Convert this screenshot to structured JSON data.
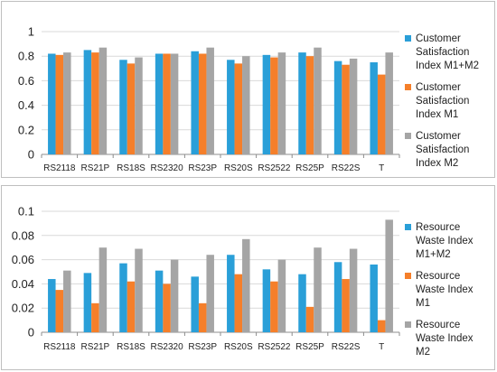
{
  "colors": {
    "series1": "#2a9fd8",
    "series2": "#f57f2a",
    "series3": "#a5a5a5",
    "grid": "#d9d9d9",
    "axis": "#8c8c8c"
  },
  "chart_data": [
    {
      "type": "bar",
      "categories": [
        "RS2118",
        "RS21P",
        "RS18S",
        "RS2320",
        "RS23P",
        "RS20S",
        "RS2522",
        "RS25P",
        "RS22S",
        "T"
      ],
      "series": [
        {
          "name": "Customer Satisfaction Index M1+M2",
          "legend_lines": [
            "Customer",
            "Satisfaction",
            "Index M1+M2"
          ],
          "color_key": "series1",
          "values": [
            0.82,
            0.85,
            0.77,
            0.82,
            0.84,
            0.77,
            0.81,
            0.83,
            0.76,
            0.75
          ]
        },
        {
          "name": "Customer Satisfaction Index M1",
          "legend_lines": [
            "Customer",
            "Satisfaction",
            "Index M1"
          ],
          "color_key": "series2",
          "values": [
            0.81,
            0.83,
            0.74,
            0.82,
            0.82,
            0.74,
            0.79,
            0.8,
            0.73,
            0.65
          ]
        },
        {
          "name": "Customer Satisfaction Index M2",
          "legend_lines": [
            "Customer",
            "Satisfaction",
            "Index M2"
          ],
          "color_key": "series3",
          "values": [
            0.83,
            0.87,
            0.79,
            0.82,
            0.87,
            0.8,
            0.83,
            0.87,
            0.78,
            0.83
          ]
        }
      ],
      "ylim": [
        0,
        1
      ],
      "yticks": [
        "0",
        "0.2",
        "0.4",
        "0.6",
        "0.8",
        "1"
      ],
      "grid": true,
      "legend": "right"
    },
    {
      "type": "bar",
      "categories": [
        "RS2118",
        "RS21P",
        "RS18S",
        "RS2320",
        "RS23P",
        "RS20S",
        "RS2522",
        "RS25P",
        "RS22S",
        "T"
      ],
      "series": [
        {
          "name": "Resource Waste Index M1+M2",
          "legend_lines": [
            "Resource",
            "Waste Index",
            "M1+M2"
          ],
          "color_key": "series1",
          "values": [
            0.044,
            0.049,
            0.057,
            0.051,
            0.046,
            0.064,
            0.052,
            0.048,
            0.058,
            0.056
          ]
        },
        {
          "name": "Resource Waste Index M1",
          "legend_lines": [
            "Resource",
            "Waste Index",
            "M1"
          ],
          "color_key": "series2",
          "values": [
            0.035,
            0.024,
            0.042,
            0.04,
            0.024,
            0.048,
            0.042,
            0.021,
            0.044,
            0.01
          ]
        },
        {
          "name": "Resource Waste Index M2",
          "legend_lines": [
            "Resource",
            "Waste Index",
            "M2"
          ],
          "color_key": "series3",
          "values": [
            0.051,
            0.07,
            0.069,
            0.06,
            0.064,
            0.077,
            0.06,
            0.07,
            0.069,
            0.093
          ]
        }
      ],
      "ylim": [
        0,
        0.1
      ],
      "yticks": [
        "0",
        "0.02",
        "0.04",
        "0.06",
        "0.08",
        "0.1"
      ],
      "grid": true,
      "legend": "right"
    }
  ]
}
